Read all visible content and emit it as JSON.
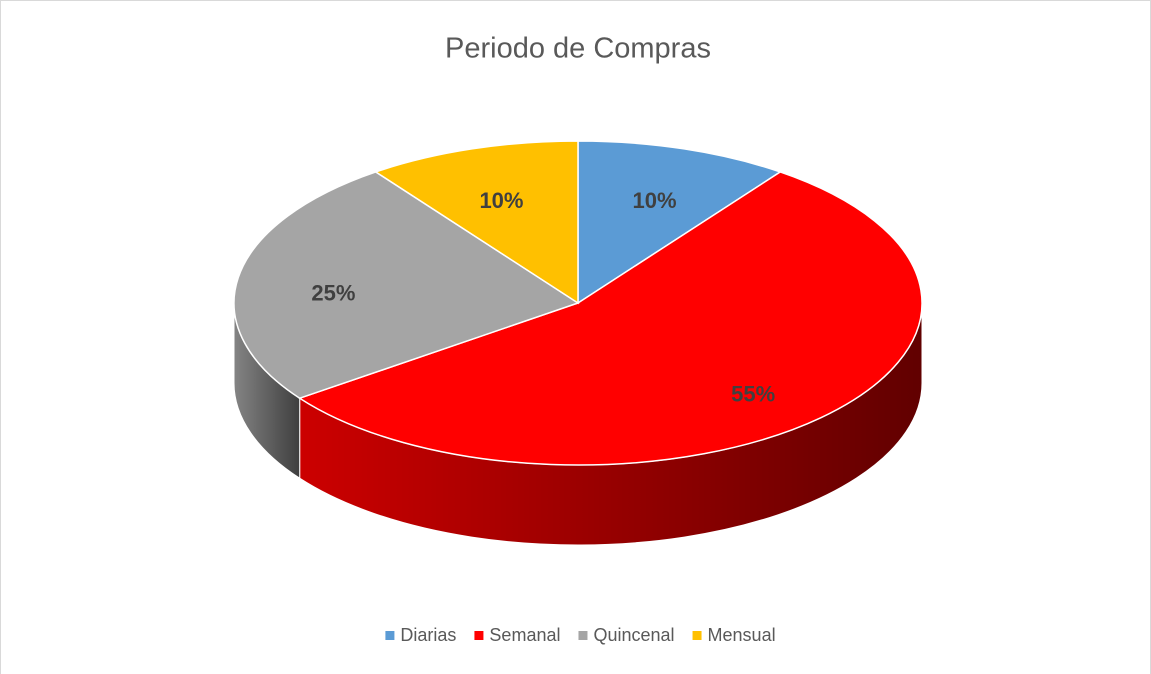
{
  "chart_data": {
    "type": "pie",
    "title": "Periodo de Compras",
    "categories": [
      "Diarias",
      "Semanal",
      "Quincenal",
      "Mensual"
    ],
    "values": [
      10,
      55,
      25,
      10
    ],
    "value_labels": [
      "10%",
      "55%",
      "25%",
      "10%"
    ],
    "colors": [
      "#5b9bd5",
      "#ff0000",
      "#a5a5a5",
      "#ffc000"
    ],
    "legend": "bottom"
  }
}
